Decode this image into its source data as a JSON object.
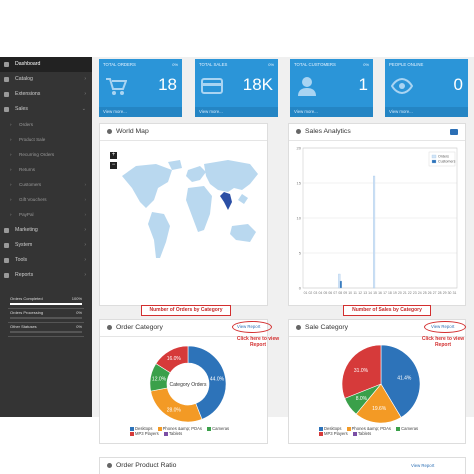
{
  "sidebar": {
    "items": [
      {
        "label": "Dashboard",
        "icon": "dashboard-icon",
        "active": true
      },
      {
        "label": "Catalog",
        "icon": "tag-icon"
      },
      {
        "label": "Extensions",
        "icon": "puzzle-icon"
      },
      {
        "label": "Sales",
        "icon": "cart-icon"
      }
    ],
    "sales_sub": [
      "Orders",
      "Product Sale",
      "Recurring Orders",
      "Returns",
      "Customers",
      "Gift Vouchers",
      "PayPal"
    ],
    "items2": [
      {
        "label": "Marketing",
        "icon": "share-icon"
      },
      {
        "label": "System",
        "icon": "gear-icon"
      },
      {
        "label": "Tools",
        "icon": "wrench-icon"
      },
      {
        "label": "Reports",
        "icon": "bar-chart-icon"
      }
    ],
    "status": [
      {
        "label": "Orders Completed",
        "pct": "100%",
        "fraction": 1.0
      },
      {
        "label": "Orders Processing",
        "pct": "0%",
        "fraction": 0.0
      },
      {
        "label": "Other Statuses",
        "pct": "0%",
        "fraction": 0.0
      }
    ]
  },
  "tiles": [
    {
      "title": "TOTAL ORDERS",
      "pct": "0%",
      "value": "18",
      "icon": "cart-icon",
      "view": "View more..."
    },
    {
      "title": "TOTAL SALES",
      "pct": "0%",
      "value": "18K",
      "icon": "credit-card-icon",
      "view": "View more..."
    },
    {
      "title": "TOTAL CUSTOMERS",
      "pct": "0%",
      "value": "1",
      "icon": "user-icon",
      "view": "View more..."
    },
    {
      "title": "PEOPLE ONLINE",
      "pct": "",
      "value": "0",
      "icon": "eye-icon",
      "view": "View more..."
    }
  ],
  "world_map": {
    "title": "World Map",
    "zoom_in": "+",
    "zoom_out": "−"
  },
  "sales_analytics": {
    "title": "Sales Analytics",
    "chart_data": {
      "type": "bar",
      "legend": [
        "Orders",
        "Customers"
      ],
      "legend_position": "top-right",
      "ylim": [
        0,
        20
      ],
      "yticks": [
        "0",
        "5",
        "10",
        "15",
        "20"
      ],
      "categories": [
        "01",
        "02",
        "03",
        "04",
        "05",
        "06",
        "07",
        "08",
        "09",
        "10",
        "11",
        "12",
        "13",
        "14",
        "15",
        "16",
        "17",
        "18",
        "19",
        "20",
        "21",
        "22",
        "23",
        "24",
        "25",
        "26",
        "27",
        "28",
        "29",
        "30",
        "31"
      ],
      "series": [
        {
          "name": "Orders",
          "values": [
            0,
            0,
            0,
            0,
            0,
            0,
            0,
            2,
            0,
            0,
            0,
            0,
            0,
            0,
            16,
            0,
            0,
            0,
            0,
            0,
            0,
            0,
            0,
            0,
            0,
            0,
            0,
            0,
            0,
            0,
            0
          ]
        },
        {
          "name": "Customers",
          "values": [
            0,
            0,
            0,
            0,
            0,
            0,
            0,
            1,
            0,
            0,
            0,
            0,
            0,
            0,
            0,
            0,
            0,
            0,
            0,
            0,
            0,
            0,
            0,
            0,
            0,
            0,
            0,
            0,
            0,
            0,
            0
          ]
        }
      ],
      "grid": true
    }
  },
  "order_category": {
    "title": "Order Category",
    "view_report": "View Report",
    "callout": "Number of Orders by Category",
    "hint": "Click here to view Report",
    "center_label": "Category Orders",
    "chart_data": {
      "type": "pie",
      "donut": true,
      "labels": [
        "Desktops",
        "Phones &amp; PDAs",
        "Cameras",
        "MP3 Players",
        "Tablets"
      ],
      "values": [
        44.0,
        28.0,
        12.0,
        16.0,
        0
      ],
      "value_labels": [
        "44.0%",
        "28.0%",
        "12.0%",
        "16.0%",
        ""
      ],
      "colors": [
        "#2d73b9",
        "#f39a25",
        "#3aa04a",
        "#d63a3a",
        "#7b4fa5"
      ],
      "legend_position": "bottom"
    }
  },
  "sale_category": {
    "title": "Sale Category",
    "view_report": "View Report",
    "callout": "Number of Sales by Category",
    "hint": "Click here to view Report",
    "chart_data": {
      "type": "pie",
      "donut": false,
      "labels": [
        "Desktops",
        "Phones &amp; PDAs",
        "Cameras",
        "MP3 Players",
        "Tablets"
      ],
      "values": [
        41.4,
        19.6,
        8.0,
        31.0,
        0
      ],
      "value_labels": [
        "41.4%",
        "19.6%",
        "8.0%",
        "31.0%",
        ""
      ],
      "colors": [
        "#2d73b9",
        "#f39a25",
        "#3aa04a",
        "#d63a3a",
        "#7b4fa5"
      ],
      "legend_position": "bottom"
    }
  },
  "order_product_ratio": {
    "title": "Order Product Ratio",
    "view_report": "View Report"
  },
  "colors": {
    "sidebar": "#343434",
    "tile": "#2b95d8",
    "accent": "#2b6fb5",
    "callout": "#d32f2f"
  }
}
